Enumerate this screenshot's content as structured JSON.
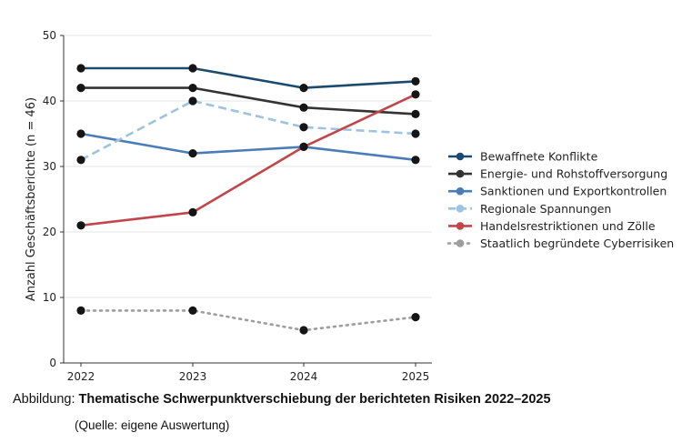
{
  "chart_data": {
    "type": "line",
    "x": [
      "2022",
      "2023",
      "2024",
      "2025"
    ],
    "ylabel": "Anzahl Geschäftsberichte (n = 46)",
    "xlabel": "",
    "ylim": [
      0,
      50
    ],
    "yticks": [
      "0",
      "10",
      "20",
      "30",
      "40",
      "50"
    ],
    "grid": "horizontal",
    "legend_position": "right",
    "series": [
      {
        "name": "Bewaffnete Konflikte",
        "values": [
          45,
          45,
          42,
          43
        ],
        "color": "#1a4a6e",
        "style": "solid"
      },
      {
        "name": "Energie- und Rohstoffversorgung",
        "values": [
          42,
          42,
          39,
          38
        ],
        "color": "#333333",
        "style": "solid"
      },
      {
        "name": "Sanktionen und Exportkontrollen",
        "values": [
          35,
          32,
          33,
          31
        ],
        "color": "#4a7db5",
        "style": "solid"
      },
      {
        "name": "Regionale Spannungen",
        "values": [
          31,
          40,
          36,
          35
        ],
        "color": "#9cc3e0",
        "style": "dashed"
      },
      {
        "name": "Handelsrestriktionen und Zölle",
        "values": [
          21,
          23,
          33,
          41
        ],
        "color": "#c0464a",
        "style": "solid"
      },
      {
        "name": "Staatlich begründete Cyberrisiken",
        "values": [
          8,
          8,
          5,
          7
        ],
        "color": "#9e9e9e",
        "style": "dotted"
      }
    ],
    "marker_color": "#151515"
  },
  "caption": {
    "prefix": "Abbildung:",
    "title": "Thematische Schwerpunktverschiebung der berichteten Risiken 2022–2025",
    "source": "(Quelle: eigene Auswertung)"
  }
}
